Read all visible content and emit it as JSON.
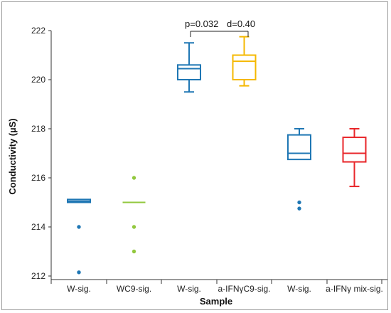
{
  "chart_data": {
    "type": "box",
    "title": "",
    "xlabel": "Sample",
    "ylabel": "Conductivity  (µS)",
    "ylim": [
      212,
      222
    ],
    "yticks": [
      212,
      214,
      216,
      218,
      220,
      222
    ],
    "grid": false,
    "categories": [
      "W-sig.",
      "WC9-sig.",
      "W-sig.",
      "a-IFNγC9-sig.",
      "W-sig.",
      "a-IFNγ mix-sig."
    ],
    "boxes": [
      {
        "category": "W-sig.",
        "color": "#1f77b4",
        "whislo": 215.0,
        "q1": 215.0,
        "median": 215.05,
        "q3": 215.12,
        "whishi": 215.12,
        "outliers": [
          214.0,
          212.15
        ]
      },
      {
        "category": "WC9-sig.",
        "color": "#92c83e",
        "whislo": 215.0,
        "q1": 215.0,
        "median": 215.0,
        "q3": 215.0,
        "whishi": 215.0,
        "outliers": [
          216.0,
          214.0,
          213.0
        ]
      },
      {
        "category": "W-sig.",
        "color": "#1f77b4",
        "whislo": 219.5,
        "q1": 220.0,
        "median": 220.45,
        "q3": 220.6,
        "whishi": 221.5,
        "outliers": []
      },
      {
        "category": "a-IFNγC9-sig.",
        "color": "#f5b800",
        "whislo": 219.75,
        "q1": 220.0,
        "median": 220.75,
        "q3": 221.0,
        "whishi": 221.75,
        "outliers": []
      },
      {
        "category": "W-sig.",
        "color": "#1f77b4",
        "whislo": 216.75,
        "q1": 216.75,
        "median": 217.0,
        "q3": 217.75,
        "whishi": 218.0,
        "outliers": [
          215.0,
          214.75
        ]
      },
      {
        "category": "a-IFNγ mix-sig.",
        "color": "#e8262a",
        "whislo": 215.65,
        "q1": 216.65,
        "median": 217.0,
        "q3": 217.65,
        "whishi": 218.0,
        "outliers": []
      }
    ],
    "annotations": [
      {
        "text": "p=0.032",
        "from": 2,
        "to": 3
      },
      {
        "text": "d=0.40"
      }
    ]
  }
}
